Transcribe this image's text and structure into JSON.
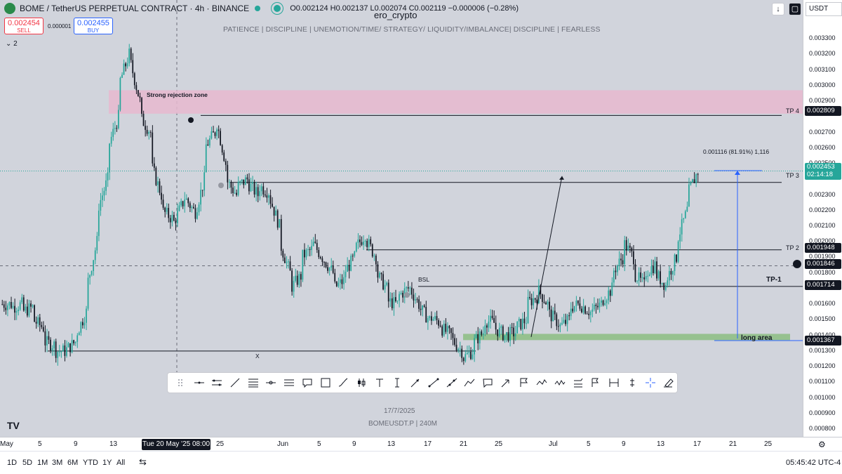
{
  "header": {
    "title": "BOME / TetherUS PERPETUAL CONTRACT · 4h · BINANCE",
    "ohlc": "O0.002124 H0.002137 L0.002074 C0.002119 −0.000006 (−0.28%)",
    "author": "ero_crypto",
    "banner": "PATIENCE  |  DISCIPLINE  |  UNEMOTION/TIME/ STRATEGY/ LIQUIDITY/IMBALANCE|  DISCIPLINE  |  FEARLESS",
    "indicator_count": "2",
    "sell_price": "0.002454",
    "sell_label": "SELL",
    "spread": "0.000001",
    "buy_price": "0.002455",
    "buy_label": "BUY",
    "currency": "USDT"
  },
  "annotations": {
    "rejection_zone": "Strong rejection zone",
    "bsl": "BSL",
    "x_mark": "X",
    "long_area": "long area",
    "measure": "0.001116 (81.91%) 1,116",
    "tp1": "TP-1",
    "tp2": "TP 2",
    "tp3": "TP 3",
    "tp4": "TP 4"
  },
  "watermark": {
    "date": "17/7/2025",
    "symbol": "BOMEUSDT.P | 240M"
  },
  "price_tags": {
    "tp4": "0.002809",
    "current": "0.002453",
    "countdown": "02:14:18",
    "tp2": "0.001948",
    "crosshair": "0.001846",
    "tp1": "0.001714",
    "long": "0.001367"
  },
  "crosshair_time": "Tue 20 May '25   08:00",
  "bottom_bar": {
    "ranges": [
      "1D",
      "5D",
      "1M",
      "3M",
      "6M",
      "YTD",
      "1Y",
      "All"
    ],
    "clock": "05:45:42 UTC-4"
  },
  "colors": {
    "up": "#26a69a",
    "down": "#131722",
    "rejection_zone": "#e8b8cf",
    "long_zone": "#8fbf86",
    "measure_line": "#2962ff"
  },
  "chart_data": {
    "type": "candlestick",
    "title": "BOME / TetherUS PERPETUAL CONTRACT · 4h · BINANCE",
    "y_ticks": [
      0.0033,
      0.0032,
      0.0031,
      0.003,
      0.0029,
      0.0027,
      0.0026,
      0.0025,
      0.0023,
      0.0022,
      0.0021,
      0.002,
      0.0019,
      0.0018,
      0.0016,
      0.0015,
      0.0014,
      0.0013,
      0.0012,
      0.0011,
      0.001,
      0.0009,
      0.0008
    ],
    "y_tick_labels": [
      "0.003300",
      "0.003200",
      "0.003100",
      "0.003000",
      "0.002900",
      "0.002700",
      "0.002600",
      "0.002500",
      "0.002300",
      "0.002200",
      "0.002100",
      "0.002000",
      "0.001900",
      "0.001800",
      "0.001600",
      "0.001500",
      "0.001400",
      "0.001300",
      "0.001200",
      "0.001100",
      "0.001000",
      "0.000900",
      "0.000800"
    ],
    "ylim": [
      0.00076,
      0.00344
    ],
    "x_ticks": [
      "May",
      "5",
      "9",
      "13",
      "25",
      "Jun",
      "5",
      "9",
      "13",
      "17",
      "21",
      "25",
      "Jul",
      "5",
      "9",
      "13",
      "17",
      "21",
      "25"
    ],
    "levels": {
      "tp4": 0.002809,
      "tp3": 0.00238,
      "tp2": 0.001948,
      "tp1": 0.001714,
      "long": 0.001367,
      "x_line": 0.0013
    },
    "rejection_zone": [
      0.00282,
      0.00297
    ],
    "long_zone": [
      0.00137,
      0.00141
    ],
    "path": [
      [
        0.0016,
        0.0016
      ],
      [
        0.00158,
        0.0016
      ],
      [
        0.00155,
        0.00158
      ],
      [
        0.0015,
        0.00145
      ],
      [
        0.00136,
        0.00134
      ],
      [
        0.0013,
        0.0013
      ],
      [
        0.0013,
        0.00136
      ],
      [
        0.0014,
        0.00155
      ],
      [
        0.0017,
        0.002
      ],
      [
        0.0022,
        0.0024
      ],
      [
        0.0026,
        0.0028
      ],
      [
        0.003,
        0.0032
      ],
      [
        0.00318,
        0.0029
      ],
      [
        0.0028,
        0.0027
      ],
      [
        0.0025,
        0.0023
      ],
      [
        0.0022,
        0.00215
      ],
      [
        0.0021,
        0.00225
      ],
      [
        0.0023,
        0.0022
      ],
      [
        0.00215,
        0.0024
      ],
      [
        0.0026,
        0.0027
      ],
      [
        0.00281,
        0.0025
      ],
      [
        0.0024,
        0.0023
      ],
      [
        0.00235,
        0.0024
      ],
      [
        0.00238,
        0.0023
      ],
      [
        0.00236,
        0.00232
      ],
      [
        0.0023,
        0.0021
      ],
      [
        0.002,
        0.0018
      ],
      [
        0.0017,
        0.00178
      ],
      [
        0.0019,
        0.00195
      ],
      [
        0.002,
        0.0019
      ],
      [
        0.0019,
        0.0018
      ],
      [
        0.0017,
        0.00175
      ],
      [
        0.0018,
        0.0019
      ],
      [
        0.00195,
        0.00205
      ],
      [
        0.00202,
        0.0019
      ],
      [
        0.0018,
        0.0017
      ],
      [
        0.00162,
        0.0016
      ],
      [
        0.00165,
        0.0017
      ],
      [
        0.00172,
        0.0016
      ],
      [
        0.00158,
        0.0015
      ],
      [
        0.00152,
        0.00148
      ],
      [
        0.00145,
        0.0014
      ],
      [
        0.00138,
        0.0013
      ],
      [
        0.00125,
        0.0013
      ],
      [
        0.00135,
        0.00142
      ],
      [
        0.0015,
        0.00148
      ],
      [
        0.00145,
        0.0014
      ],
      [
        0.0014,
        0.00142
      ],
      [
        0.00145,
        0.0015
      ],
      [
        0.0016,
        0.00165
      ],
      [
        0.0017,
        0.0016
      ],
      [
        0.00155,
        0.00148
      ],
      [
        0.00145,
        0.0015
      ],
      [
        0.00158,
        0.0016
      ],
      [
        0.0016,
        0.00155
      ],
      [
        0.00155,
        0.0016
      ],
      [
        0.00162,
        0.0017
      ],
      [
        0.0018,
        0.0019
      ],
      [
        0.002,
        0.0019
      ],
      [
        0.0018,
        0.00172
      ],
      [
        0.0018,
        0.00185
      ],
      [
        0.0018,
        0.00172
      ],
      [
        0.00175,
        0.0019
      ],
      [
        0.002,
        0.0022
      ],
      [
        0.0023,
        0.00245
      ]
    ]
  }
}
